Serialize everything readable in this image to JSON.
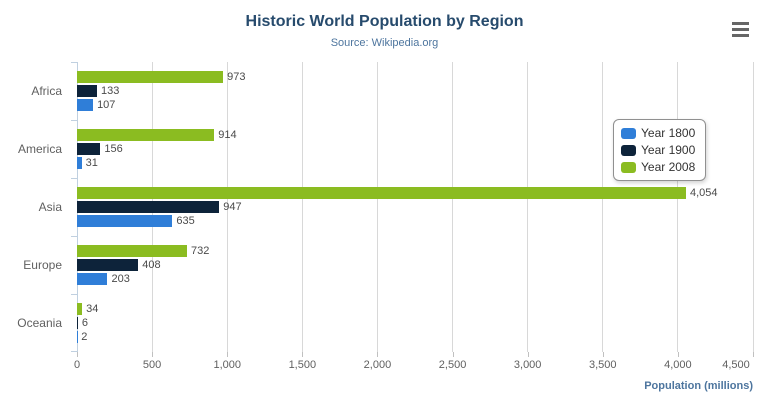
{
  "header": {
    "title": "Historic World Population by Region",
    "subtitle": "Source: Wikipedia.org"
  },
  "export_menu": {
    "icon": "hamburger-menu-icon"
  },
  "chart_data": {
    "type": "bar",
    "orientation": "horizontal",
    "title": "Historic World Population by Region",
    "subtitle": "Source: Wikipedia.org",
    "categories": [
      "Africa",
      "America",
      "Asia",
      "Europe",
      "Oceania"
    ],
    "series": [
      {
        "name": "Year 1800",
        "color": "#2f7ed8",
        "values": [
          107,
          31,
          635,
          203,
          2
        ]
      },
      {
        "name": "Year 1900",
        "color": "#0d233a",
        "values": [
          133,
          156,
          947,
          408,
          6
        ]
      },
      {
        "name": "Year 2008",
        "color": "#8bbc21",
        "values": [
          973,
          914,
          4054,
          732,
          34
        ]
      }
    ],
    "bar_order_top_to_bottom": [
      "Year 2008",
      "Year 1900",
      "Year 1800"
    ],
    "xlabel": "Population (millions)",
    "ylabel": "",
    "xlim": [
      0,
      4500
    ],
    "x_tick_step": 500,
    "x_tick_labels": [
      "0",
      "500",
      "1,000",
      "1,500",
      "2,000",
      "2,500",
      "3,000",
      "3,500",
      "4,000",
      "4,500"
    ],
    "grid": true,
    "data_labels": true,
    "legend_position": "right"
  },
  "legend": {
    "items": [
      {
        "label": "Year 1800",
        "color": "#2f7ed8"
      },
      {
        "label": "Year 1900",
        "color": "#0d233a"
      },
      {
        "label": "Year 2008",
        "color": "#8bbc21"
      }
    ]
  },
  "colors": {
    "title": "#274b6d",
    "subtitle": "#4d759e",
    "axis_line": "#c0d0e0",
    "gridline": "#d8d8d8",
    "tick": "#c0c0c0",
    "tick_label": "#606060",
    "data_label": "#4a4a4a",
    "legend_border": "#909090",
    "hamburger": "#666666"
  }
}
